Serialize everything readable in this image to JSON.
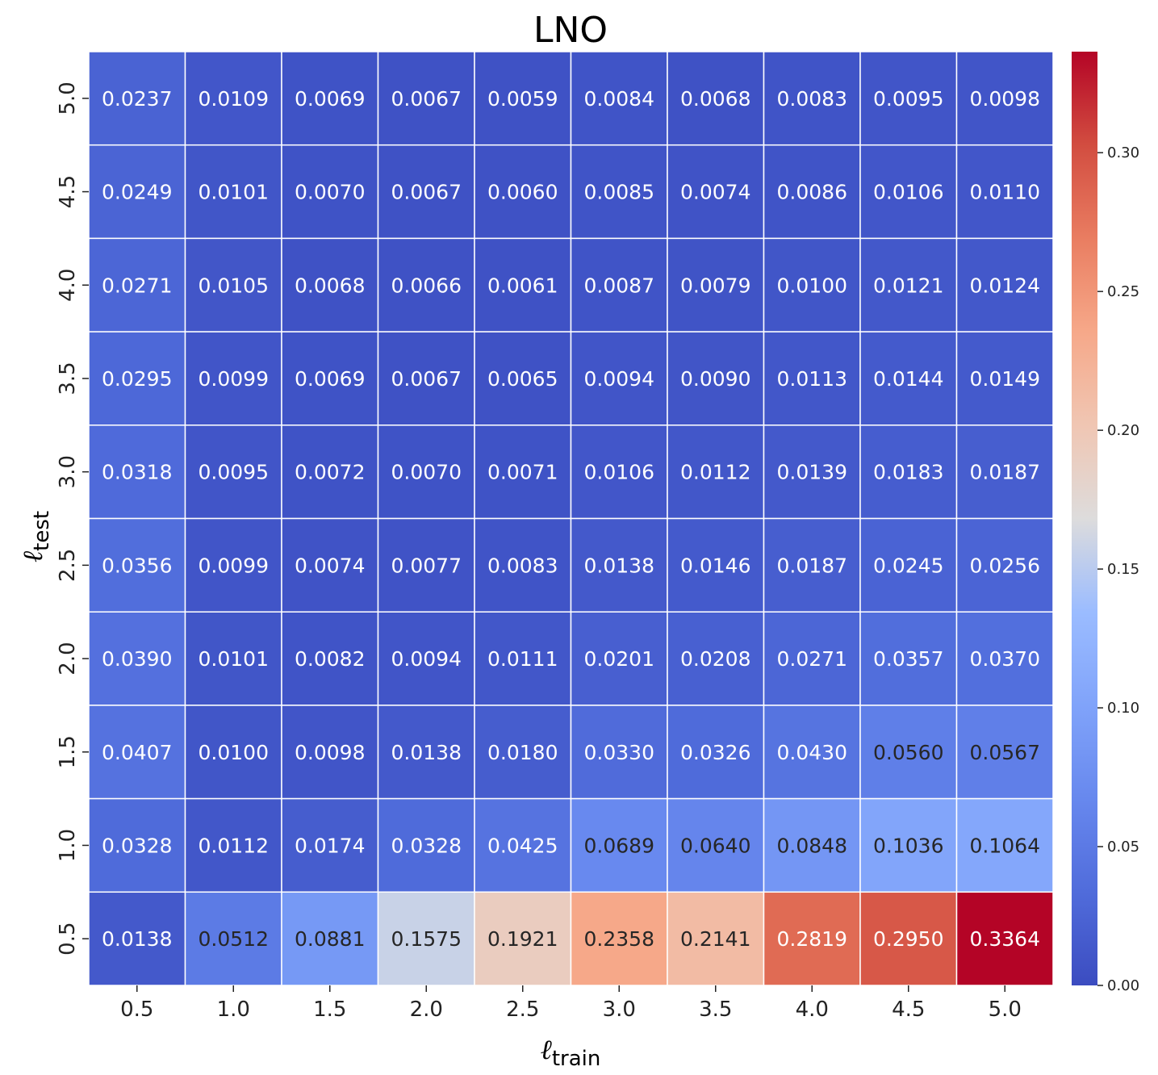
{
  "chart_data": {
    "type": "heatmap",
    "title": "LNO",
    "xlabel": {
      "main": "ℓ",
      "sub": "train"
    },
    "ylabel": {
      "main": "ℓ",
      "sub": "test"
    },
    "x_categories": [
      "0.5",
      "1.0",
      "1.5",
      "2.0",
      "2.5",
      "3.0",
      "3.5",
      "4.0",
      "4.5",
      "5.0"
    ],
    "y_categories_top_to_bottom": [
      "5.0",
      "4.5",
      "4.0",
      "3.5",
      "3.0",
      "2.5",
      "2.0",
      "1.5",
      "1.0",
      "0.5"
    ],
    "values_top_to_bottom": [
      [
        "0.0237",
        "0.0109",
        "0.0069",
        "0.0067",
        "0.0059",
        "0.0084",
        "0.0068",
        "0.0083",
        "0.0095",
        "0.0098"
      ],
      [
        "0.0249",
        "0.0101",
        "0.0070",
        "0.0067",
        "0.0060",
        "0.0085",
        "0.0074",
        "0.0086",
        "0.0106",
        "0.0110"
      ],
      [
        "0.0271",
        "0.0105",
        "0.0068",
        "0.0066",
        "0.0061",
        "0.0087",
        "0.0079",
        "0.0100",
        "0.0121",
        "0.0124"
      ],
      [
        "0.0295",
        "0.0099",
        "0.0069",
        "0.0067",
        "0.0065",
        "0.0094",
        "0.0090",
        "0.0113",
        "0.0144",
        "0.0149"
      ],
      [
        "0.0318",
        "0.0095",
        "0.0072",
        "0.0070",
        "0.0071",
        "0.0106",
        "0.0112",
        "0.0139",
        "0.0183",
        "0.0187"
      ],
      [
        "0.0356",
        "0.0099",
        "0.0074",
        "0.0077",
        "0.0083",
        "0.0138",
        "0.0146",
        "0.0187",
        "0.0245",
        "0.0256"
      ],
      [
        "0.0390",
        "0.0101",
        "0.0082",
        "0.0094",
        "0.0111",
        "0.0201",
        "0.0208",
        "0.0271",
        "0.0357",
        "0.0370"
      ],
      [
        "0.0407",
        "0.0100",
        "0.0098",
        "0.0138",
        "0.0180",
        "0.0330",
        "0.0326",
        "0.0430",
        "0.0560",
        "0.0567"
      ],
      [
        "0.0328",
        "0.0112",
        "0.0174",
        "0.0328",
        "0.0425",
        "0.0689",
        "0.0640",
        "0.0848",
        "0.1036",
        "0.1064"
      ],
      [
        "0.0138",
        "0.0512",
        "0.0881",
        "0.1575",
        "0.1921",
        "0.2358",
        "0.2141",
        "0.2819",
        "0.2950",
        "0.3364"
      ]
    ],
    "colorbar": {
      "colormap": "coolwarm",
      "range": [
        0,
        0.3364
      ],
      "ticks": [
        {
          "value": 0.0,
          "label": "0.00"
        },
        {
          "value": 0.05,
          "label": "0.05"
        },
        {
          "value": 0.1,
          "label": "0.10"
        },
        {
          "value": 0.15,
          "label": "0.15"
        },
        {
          "value": 0.2,
          "label": "0.20"
        },
        {
          "value": 0.25,
          "label": "0.25"
        },
        {
          "value": 0.3,
          "label": "0.30"
        }
      ]
    },
    "colors": {
      "low": "#3b4cc0",
      "mid": "#dddddd",
      "high": "#b40426",
      "text_light": "#ffffff",
      "text_dark": "#262626",
      "grid_lines": "#ffffff"
    }
  }
}
